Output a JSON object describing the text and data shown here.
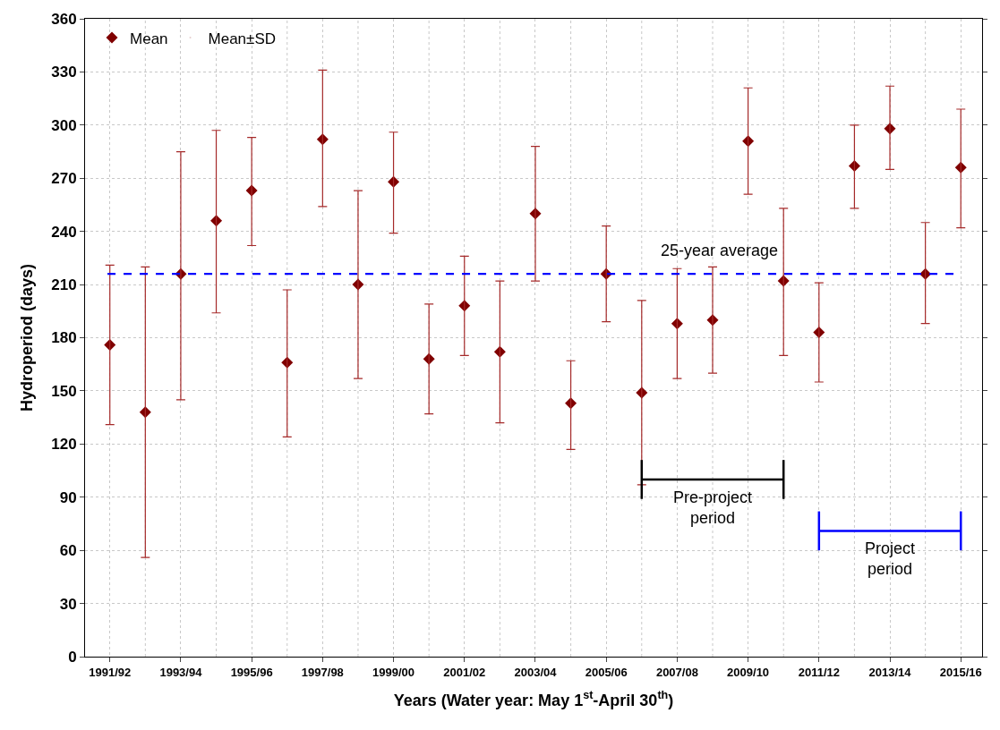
{
  "chart_data": {
    "type": "scatter",
    "xlabel": "Years (Water year: May 1$^{st}$-April 30$^{th}$)",
    "ylabel": "Hydroperiod (days)",
    "categories": [
      "1991/92",
      null,
      "1993/94",
      null,
      "1995/96",
      null,
      "1997/98",
      null,
      "1999/00",
      null,
      "2001/02",
      null,
      "2003/04",
      null,
      "2005/06",
      null,
      "2007/08",
      null,
      "2009/10",
      null,
      "2011/12",
      null,
      "2013/14",
      null,
      "2015/16"
    ],
    "series": [
      {
        "name": "Mean",
        "color": "#800000",
        "values": [
          176,
          138,
          216,
          246,
          263,
          166,
          292,
          210,
          268,
          168,
          198,
          172,
          250,
          143,
          216,
          149,
          188,
          190,
          291,
          212,
          183,
          277,
          298,
          216,
          276
        ],
        "errors": [
          [
            131,
            221
          ],
          [
            56,
            220
          ],
          [
            145,
            285
          ],
          [
            194,
            297
          ],
          [
            232,
            293
          ],
          [
            124,
            207
          ],
          [
            254,
            331
          ],
          [
            157,
            263
          ],
          [
            239,
            296
          ],
          [
            137,
            199
          ],
          [
            170,
            226
          ],
          [
            132,
            212
          ],
          [
            212,
            288
          ],
          [
            117,
            167
          ],
          [
            189,
            243
          ],
          [
            97,
            201
          ],
          [
            157,
            219
          ],
          [
            160,
            220
          ],
          [
            261,
            321
          ],
          [
            170,
            253
          ],
          [
            155,
            211
          ],
          [
            253,
            300
          ],
          [
            275,
            322
          ],
          [
            188,
            245
          ],
          [
            242,
            309
          ]
        ]
      },
      {
        "name": "Pre-project period",
        "type": "line",
        "marker": "none",
        "color": "#000000",
        "values": [
          null,
          null,
          null,
          null,
          null,
          null,
          null,
          null,
          null,
          null,
          null,
          null,
          null,
          null,
          null,
          100,
          100,
          100,
          100,
          100,
          null,
          null,
          null,
          null,
          null
        ],
        "errors": [
          null,
          null,
          null,
          null,
          null,
          null,
          null,
          null,
          null,
          null,
          null,
          null,
          null,
          null,
          null,
          [
            89,
            111
          ],
          null,
          null,
          null,
          [
            89,
            111
          ],
          null,
          null,
          null,
          null,
          null
        ]
      },
      {
        "name": "Project period",
        "type": "line",
        "marker": "none",
        "color": "#0000ff",
        "values": [
          null,
          null,
          null,
          null,
          null,
          null,
          null,
          null,
          null,
          null,
          null,
          null,
          null,
          null,
          null,
          null,
          null,
          null,
          null,
          null,
          71,
          71,
          71,
          71,
          71
        ],
        "errors": [
          null,
          null,
          null,
          null,
          null,
          null,
          null,
          null,
          null,
          null,
          null,
          null,
          null,
          null,
          null,
          null,
          null,
          null,
          null,
          null,
          [
            60,
            82
          ],
          null,
          null,
          null,
          [
            60,
            82
          ]
        ]
      }
    ],
    "annotations": [
      "Mean±SD"
    ],
    "ref_lines": [
      {
        "axis": "y",
        "value": 216,
        "label": "25-year average",
        "color": "#0000ff",
        "line_style": "dashed"
      }
    ],
    "ylim": [
      0,
      360
    ],
    "yticks": [
      0,
      30,
      60,
      90,
      120,
      150,
      180,
      210,
      240,
      270,
      300,
      330,
      360
    ],
    "grid": true,
    "legend": "top left",
    "marker": "diamond"
  }
}
